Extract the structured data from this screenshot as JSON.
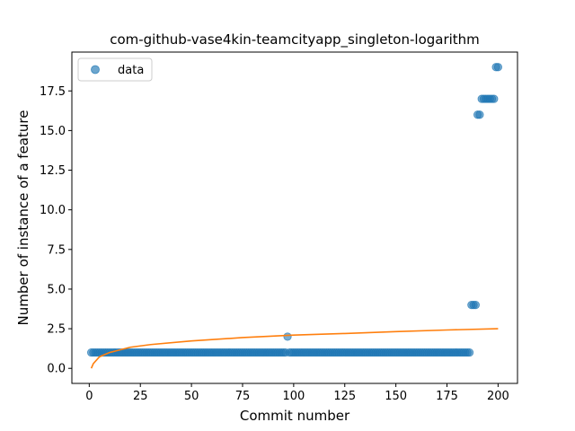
{
  "chart_data": {
    "type": "scatter",
    "title": "com-github-vase4kin-teamcityapp_singleton-logarithm",
    "xlabel": "Commit number",
    "ylabel": "Number of instance of a feature",
    "xlim": [
      -8.5,
      209.5
    ],
    "ylim": [
      -0.95,
      19.95
    ],
    "xticks": [
      0,
      25,
      50,
      75,
      100,
      125,
      150,
      175,
      200
    ],
    "yticks": [
      0.0,
      2.5,
      5.0,
      7.5,
      10.0,
      12.5,
      15.0,
      17.5
    ],
    "x_tick_labels": [
      "0",
      "25",
      "50",
      "75",
      "100",
      "125",
      "150",
      "175",
      "200"
    ],
    "y_tick_labels": [
      "0.0",
      "2.5",
      "5.0",
      "7.5",
      "10.0",
      "12.5",
      "15.0",
      "17.5"
    ],
    "legend": {
      "position": "top-left",
      "entries": [
        "data"
      ]
    },
    "grid": false,
    "series": [
      {
        "name": "data",
        "kind": "scatter",
        "color": "#1f77b4",
        "points": [
          {
            "x_from": 1,
            "x_to": 96,
            "y": 1
          },
          {
            "x_from": 97,
            "x_to": 97,
            "y": 2
          },
          {
            "x_from": 98,
            "x_to": 186,
            "y": 1
          },
          {
            "x_from": 187,
            "x_to": 189,
            "y": 4
          },
          {
            "x_from": 190,
            "x_to": 191,
            "y": 16
          },
          {
            "x_from": 192,
            "x_to": 198,
            "y": 17
          },
          {
            "x_from": 199,
            "x_to": 200,
            "y": 19
          }
        ]
      },
      {
        "kind": "line",
        "color": "#ff7f0e",
        "function": "logarithmic",
        "x": [
          1,
          2,
          5,
          10,
          20,
          30,
          50,
          75,
          100,
          125,
          150,
          175,
          200
        ],
        "y": [
          0.0,
          0.3,
          0.73,
          1.0,
          1.33,
          1.5,
          1.73,
          1.94,
          2.1,
          2.2,
          2.32,
          2.42,
          2.5
        ]
      }
    ]
  }
}
